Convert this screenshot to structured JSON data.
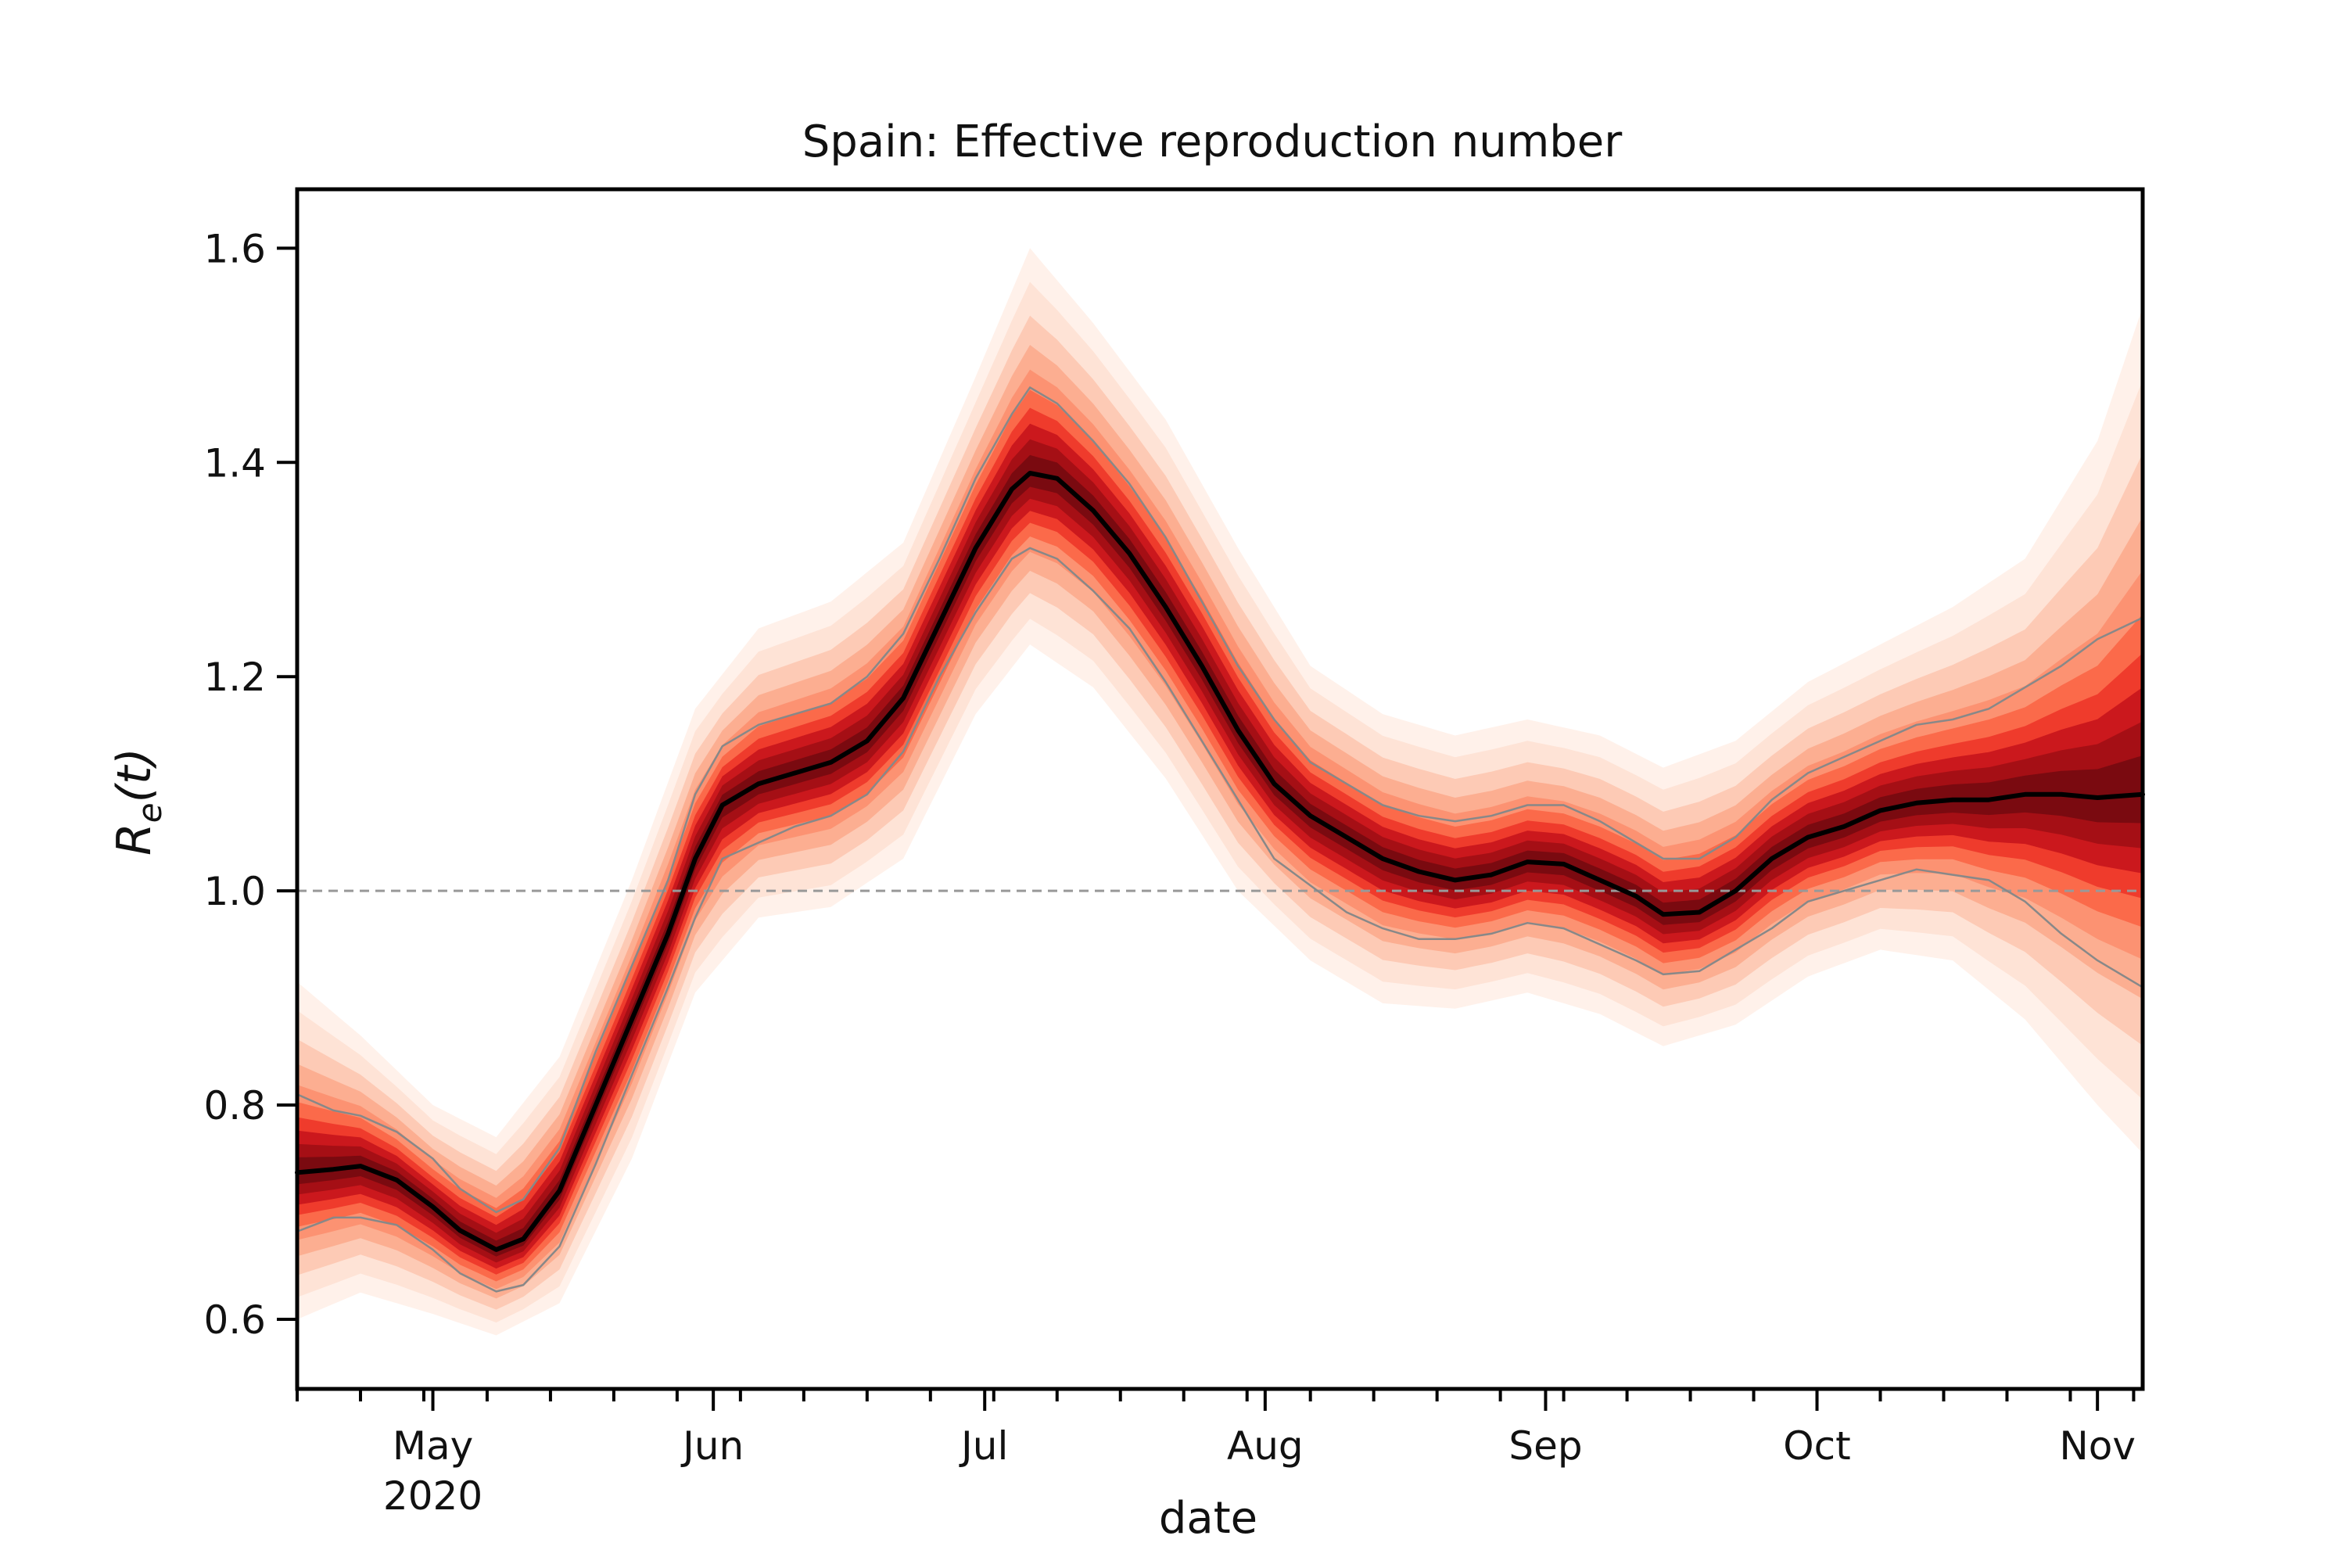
{
  "chart_data": {
    "type": "line",
    "title": "Spain: Effective reproduction number",
    "xlabel": "date",
    "ylabel": "R_e(t)",
    "ylabel_parts": {
      "main": "R",
      "subscript": "e",
      "args": "(t)"
    },
    "x_axis": {
      "type": "date",
      "range": [
        "2020-04-16",
        "2020-11-06"
      ],
      "major_ticks": [
        {
          "date": "2020-05-01",
          "label": "May",
          "sublabel": "2020"
        },
        {
          "date": "2020-06-01",
          "label": "Jun",
          "sublabel": ""
        },
        {
          "date": "2020-07-01",
          "label": "Jul",
          "sublabel": ""
        },
        {
          "date": "2020-08-01",
          "label": "Aug",
          "sublabel": ""
        },
        {
          "date": "2020-09-01",
          "label": "Sep",
          "sublabel": ""
        },
        {
          "date": "2020-10-01",
          "label": "Oct",
          "sublabel": ""
        },
        {
          "date": "2020-11-01",
          "label": "Nov",
          "sublabel": ""
        }
      ],
      "minor_ticks": "weekly"
    },
    "y_axis": {
      "range": [
        0.535,
        1.655
      ],
      "ticks": [
        0.6,
        0.8,
        1.0,
        1.2,
        1.4,
        1.6
      ],
      "tick_labels": [
        "0.6",
        "0.8",
        "1.0",
        "1.2",
        "1.4",
        "1.6"
      ]
    },
    "reference_line": {
      "y": 1.0,
      "style": "dashed",
      "color": "#999999"
    },
    "grid": false,
    "legend": "none",
    "series": [
      {
        "role": "median",
        "color": "#000000",
        "points": [
          [
            "2020-04-16",
            0.737
          ],
          [
            "2020-04-20",
            0.74
          ],
          [
            "2020-04-23",
            0.743
          ],
          [
            "2020-04-27",
            0.73
          ],
          [
            "2020-05-01",
            0.705
          ],
          [
            "2020-05-04",
            0.683
          ],
          [
            "2020-05-08",
            0.665
          ],
          [
            "2020-05-11",
            0.675
          ],
          [
            "2020-05-15",
            0.72
          ],
          [
            "2020-05-19",
            0.8
          ],
          [
            "2020-05-23",
            0.88
          ],
          [
            "2020-05-27",
            0.96
          ],
          [
            "2020-05-30",
            1.03
          ],
          [
            "2020-06-02",
            1.08
          ],
          [
            "2020-06-06",
            1.1
          ],
          [
            "2020-06-10",
            1.11
          ],
          [
            "2020-06-14",
            1.12
          ],
          [
            "2020-06-18",
            1.14
          ],
          [
            "2020-06-22",
            1.18
          ],
          [
            "2020-06-26",
            1.25
          ],
          [
            "2020-06-30",
            1.32
          ],
          [
            "2020-07-04",
            1.375
          ],
          [
            "2020-07-06",
            1.39
          ],
          [
            "2020-07-09",
            1.385
          ],
          [
            "2020-07-13",
            1.355
          ],
          [
            "2020-07-17",
            1.315
          ],
          [
            "2020-07-21",
            1.265
          ],
          [
            "2020-07-25",
            1.21
          ],
          [
            "2020-07-29",
            1.15
          ],
          [
            "2020-08-02",
            1.1
          ],
          [
            "2020-08-06",
            1.07
          ],
          [
            "2020-08-10",
            1.05
          ],
          [
            "2020-08-14",
            1.03
          ],
          [
            "2020-08-18",
            1.018
          ],
          [
            "2020-08-22",
            1.01
          ],
          [
            "2020-08-26",
            1.015
          ],
          [
            "2020-08-30",
            1.027
          ],
          [
            "2020-09-03",
            1.025
          ],
          [
            "2020-09-07",
            1.01
          ],
          [
            "2020-09-11",
            0.995
          ],
          [
            "2020-09-14",
            0.978
          ],
          [
            "2020-09-18",
            0.98
          ],
          [
            "2020-09-22",
            1.0
          ],
          [
            "2020-09-26",
            1.03
          ],
          [
            "2020-09-30",
            1.05
          ],
          [
            "2020-10-04",
            1.06
          ],
          [
            "2020-10-08",
            1.075
          ],
          [
            "2020-10-12",
            1.082
          ],
          [
            "2020-10-16",
            1.085
          ],
          [
            "2020-10-20",
            1.085
          ],
          [
            "2020-10-24",
            1.09
          ],
          [
            "2020-10-28",
            1.09
          ],
          [
            "2020-11-01",
            1.087
          ],
          [
            "2020-11-06",
            1.09
          ]
        ]
      },
      {
        "role": "credible-interval-lower",
        "color": "#888888",
        "points": [
          [
            "2020-04-16",
            0.682
          ],
          [
            "2020-04-20",
            0.695
          ],
          [
            "2020-04-23",
            0.695
          ],
          [
            "2020-04-27",
            0.688
          ],
          [
            "2020-05-01",
            0.665
          ],
          [
            "2020-05-04",
            0.643
          ],
          [
            "2020-05-08",
            0.626
          ],
          [
            "2020-05-11",
            0.632
          ],
          [
            "2020-05-15",
            0.668
          ],
          [
            "2020-05-19",
            0.745
          ],
          [
            "2020-05-23",
            0.828
          ],
          [
            "2020-05-27",
            0.91
          ],
          [
            "2020-05-30",
            0.975
          ],
          [
            "2020-06-02",
            1.03
          ],
          [
            "2020-06-06",
            1.045
          ],
          [
            "2020-06-10",
            1.06
          ],
          [
            "2020-06-14",
            1.07
          ],
          [
            "2020-06-18",
            1.09
          ],
          [
            "2020-06-22",
            1.13
          ],
          [
            "2020-06-26",
            1.2
          ],
          [
            "2020-06-30",
            1.26
          ],
          [
            "2020-07-04",
            1.31
          ],
          [
            "2020-07-06",
            1.32
          ],
          [
            "2020-07-09",
            1.31
          ],
          [
            "2020-07-13",
            1.28
          ],
          [
            "2020-07-17",
            1.245
          ],
          [
            "2020-07-21",
            1.195
          ],
          [
            "2020-07-25",
            1.14
          ],
          [
            "2020-07-29",
            1.085
          ],
          [
            "2020-08-02",
            1.03
          ],
          [
            "2020-08-06",
            1.005
          ],
          [
            "2020-08-10",
            0.98
          ],
          [
            "2020-08-14",
            0.965
          ],
          [
            "2020-08-18",
            0.955
          ],
          [
            "2020-08-22",
            0.955
          ],
          [
            "2020-08-26",
            0.96
          ],
          [
            "2020-08-30",
            0.97
          ],
          [
            "2020-09-03",
            0.965
          ],
          [
            "2020-09-07",
            0.95
          ],
          [
            "2020-09-11",
            0.935
          ],
          [
            "2020-09-14",
            0.922
          ],
          [
            "2020-09-18",
            0.925
          ],
          [
            "2020-09-22",
            0.945
          ],
          [
            "2020-09-26",
            0.965
          ],
          [
            "2020-09-30",
            0.99
          ],
          [
            "2020-10-04",
            1.0
          ],
          [
            "2020-10-08",
            1.01
          ],
          [
            "2020-10-12",
            1.02
          ],
          [
            "2020-10-16",
            1.015
          ],
          [
            "2020-10-20",
            1.01
          ],
          [
            "2020-10-24",
            0.99
          ],
          [
            "2020-10-28",
            0.96
          ],
          [
            "2020-11-01",
            0.935
          ],
          [
            "2020-11-06",
            0.91
          ]
        ]
      },
      {
        "role": "credible-interval-upper",
        "color": "#888888",
        "points": [
          [
            "2020-04-16",
            0.81
          ],
          [
            "2020-04-20",
            0.795
          ],
          [
            "2020-04-23",
            0.79
          ],
          [
            "2020-04-27",
            0.775
          ],
          [
            "2020-05-01",
            0.75
          ],
          [
            "2020-05-04",
            0.722
          ],
          [
            "2020-05-08",
            0.7
          ],
          [
            "2020-05-11",
            0.712
          ],
          [
            "2020-05-15",
            0.76
          ],
          [
            "2020-05-19",
            0.85
          ],
          [
            "2020-05-23",
            0.93
          ],
          [
            "2020-05-27",
            1.01
          ],
          [
            "2020-05-30",
            1.09
          ],
          [
            "2020-06-02",
            1.135
          ],
          [
            "2020-06-06",
            1.155
          ],
          [
            "2020-06-10",
            1.165
          ],
          [
            "2020-06-14",
            1.175
          ],
          [
            "2020-06-18",
            1.2
          ],
          [
            "2020-06-22",
            1.24
          ],
          [
            "2020-06-26",
            1.31
          ],
          [
            "2020-06-30",
            1.385
          ],
          [
            "2020-07-04",
            1.445
          ],
          [
            "2020-07-06",
            1.47
          ],
          [
            "2020-07-09",
            1.455
          ],
          [
            "2020-07-13",
            1.42
          ],
          [
            "2020-07-17",
            1.38
          ],
          [
            "2020-07-21",
            1.33
          ],
          [
            "2020-07-25",
            1.27
          ],
          [
            "2020-07-29",
            1.21
          ],
          [
            "2020-08-02",
            1.16
          ],
          [
            "2020-08-06",
            1.12
          ],
          [
            "2020-08-10",
            1.1
          ],
          [
            "2020-08-14",
            1.08
          ],
          [
            "2020-08-18",
            1.07
          ],
          [
            "2020-08-22",
            1.065
          ],
          [
            "2020-08-26",
            1.07
          ],
          [
            "2020-08-30",
            1.08
          ],
          [
            "2020-09-03",
            1.08
          ],
          [
            "2020-09-07",
            1.065
          ],
          [
            "2020-09-11",
            1.045
          ],
          [
            "2020-09-14",
            1.03
          ],
          [
            "2020-09-18",
            1.03
          ],
          [
            "2020-09-22",
            1.05
          ],
          [
            "2020-09-26",
            1.085
          ],
          [
            "2020-09-30",
            1.11
          ],
          [
            "2020-10-04",
            1.125
          ],
          [
            "2020-10-08",
            1.14
          ],
          [
            "2020-10-12",
            1.155
          ],
          [
            "2020-10-16",
            1.16
          ],
          [
            "2020-10-20",
            1.17
          ],
          [
            "2020-10-24",
            1.19
          ],
          [
            "2020-10-28",
            1.21
          ],
          [
            "2020-11-01",
            1.235
          ],
          [
            "2020-11-06",
            1.255
          ]
        ]
      },
      {
        "role": "density-outer-lower",
        "points": [
          [
            "2020-04-16",
            0.6
          ],
          [
            "2020-04-23",
            0.625
          ],
          [
            "2020-05-01",
            0.605
          ],
          [
            "2020-05-08",
            0.585
          ],
          [
            "2020-05-15",
            0.615
          ],
          [
            "2020-05-23",
            0.75
          ],
          [
            "2020-05-30",
            0.905
          ],
          [
            "2020-06-06",
            0.975
          ],
          [
            "2020-06-14",
            0.985
          ],
          [
            "2020-06-22",
            1.03
          ],
          [
            "2020-06-30",
            1.165
          ],
          [
            "2020-07-06",
            1.23
          ],
          [
            "2020-07-13",
            1.19
          ],
          [
            "2020-07-21",
            1.105
          ],
          [
            "2020-07-29",
            1.0
          ],
          [
            "2020-08-06",
            0.935
          ],
          [
            "2020-08-14",
            0.895
          ],
          [
            "2020-08-22",
            0.89
          ],
          [
            "2020-08-30",
            0.905
          ],
          [
            "2020-09-07",
            0.885
          ],
          [
            "2020-09-14",
            0.855
          ],
          [
            "2020-09-22",
            0.875
          ],
          [
            "2020-09-30",
            0.92
          ],
          [
            "2020-10-08",
            0.945
          ],
          [
            "2020-10-16",
            0.935
          ],
          [
            "2020-10-24",
            0.88
          ],
          [
            "2020-11-01",
            0.8
          ],
          [
            "2020-11-06",
            0.755
          ]
        ]
      },
      {
        "role": "density-outer-upper",
        "points": [
          [
            "2020-04-16",
            0.915
          ],
          [
            "2020-04-23",
            0.865
          ],
          [
            "2020-05-01",
            0.8
          ],
          [
            "2020-05-08",
            0.77
          ],
          [
            "2020-05-15",
            0.845
          ],
          [
            "2020-05-23",
            1.01
          ],
          [
            "2020-05-30",
            1.17
          ],
          [
            "2020-06-06",
            1.245
          ],
          [
            "2020-06-14",
            1.27
          ],
          [
            "2020-06-22",
            1.325
          ],
          [
            "2020-06-30",
            1.48
          ],
          [
            "2020-07-06",
            1.6
          ],
          [
            "2020-07-13",
            1.53
          ],
          [
            "2020-07-21",
            1.44
          ],
          [
            "2020-07-29",
            1.32
          ],
          [
            "2020-08-06",
            1.21
          ],
          [
            "2020-08-14",
            1.165
          ],
          [
            "2020-08-22",
            1.145
          ],
          [
            "2020-08-30",
            1.16
          ],
          [
            "2020-09-07",
            1.145
          ],
          [
            "2020-09-14",
            1.115
          ],
          [
            "2020-09-22",
            1.14
          ],
          [
            "2020-09-30",
            1.195
          ],
          [
            "2020-10-08",
            1.23
          ],
          [
            "2020-10-16",
            1.265
          ],
          [
            "2020-10-24",
            1.31
          ],
          [
            "2020-11-01",
            1.42
          ],
          [
            "2020-11-06",
            1.545
          ]
        ]
      }
    ]
  },
  "colors": {
    "band_light": "#fde0d2",
    "band_mid": "#fb6a4a",
    "band_dark": "#cb181d",
    "band_darkest": "#8b0a10",
    "median": "#000000",
    "interval": "#888888",
    "reference": "#999999",
    "axis": "#000000"
  }
}
